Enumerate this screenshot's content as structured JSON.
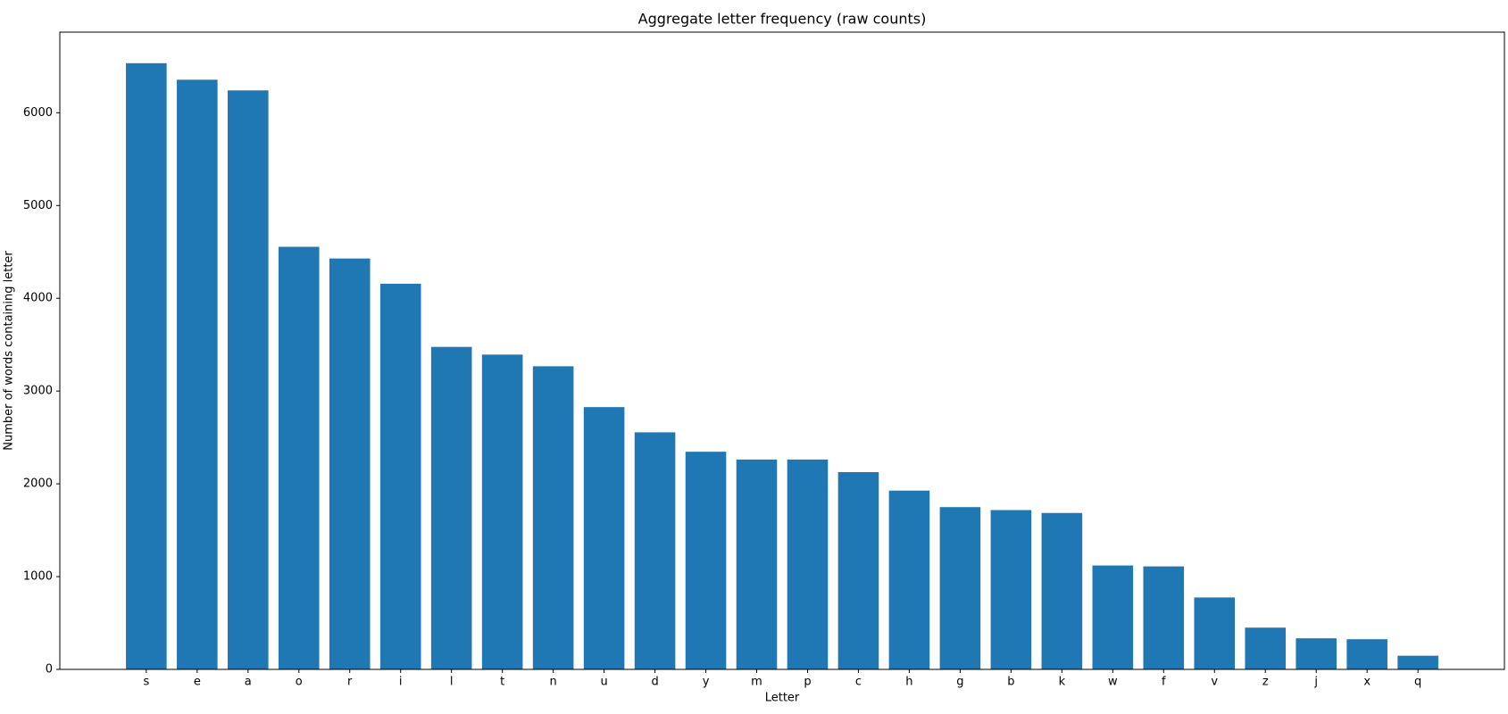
{
  "chart_data": {
    "type": "bar",
    "title": "Aggregate letter frequency (raw counts)",
    "x_label": "Letter",
    "y_label": "Number of words containing letter",
    "categories": [
      "s",
      "e",
      "a",
      "o",
      "r",
      "i",
      "l",
      "t",
      "n",
      "u",
      "d",
      "y",
      "m",
      "p",
      "c",
      "h",
      "g",
      "b",
      "k",
      "w",
      "f",
      "v",
      "z",
      "j",
      "x",
      "q"
    ],
    "values": [
      6534,
      6356,
      6241,
      4555,
      4429,
      4157,
      3476,
      3393,
      3267,
      2827,
      2555,
      2346,
      2262,
      2262,
      2126,
      1927,
      1749,
      1717,
      1686,
      1120,
      1110,
      775,
      450,
      335,
      325,
      147
    ],
    "color": "#1f77b4",
    "ylim": [
      0,
      6869
    ],
    "yticks": [
      0,
      1000,
      2000,
      3000,
      4000,
      5000,
      6000
    ],
    "grid": false
  }
}
